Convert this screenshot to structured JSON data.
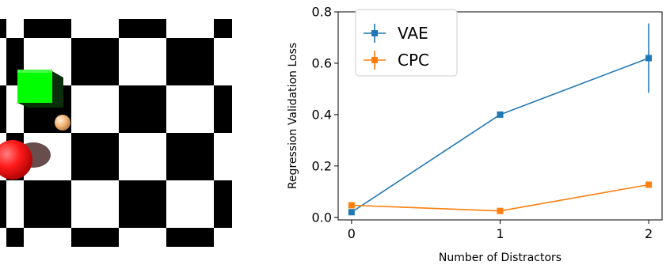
{
  "colors": {
    "vae": "#1f77b4",
    "cpc": "#ff7f0e",
    "board_dark": "#000000",
    "board_light": "#ffffff",
    "cube": "#00ff00",
    "big_ball": "#ff1a1a",
    "small_ball": "#f3b676"
  },
  "scene": {
    "type": "rendered checkerboard image",
    "objects": [
      "green-cube",
      "red-sphere",
      "tan-sphere"
    ]
  },
  "chart_data": {
    "type": "line",
    "x": [
      0,
      1,
      2
    ],
    "xticks": [
      0,
      1,
      2
    ],
    "yticks": [
      0.0,
      0.2,
      0.4,
      0.6,
      0.8
    ],
    "ytick_labels": [
      "0.0",
      "0.2",
      "0.4",
      "0.6",
      "0.8"
    ],
    "xlim": [
      -0.09,
      2.09
    ],
    "ylim": [
      -0.01,
      0.8
    ],
    "xlabel": "Number of Distractors",
    "ylabel": "Regression Validation Loss",
    "legend_position": "top-left",
    "grid": false,
    "series": [
      {
        "name": "VAE",
        "values": [
          0.02,
          0.4,
          0.62
        ],
        "errors": [
          0.0,
          0.0,
          0.135
        ]
      },
      {
        "name": "CPC",
        "values": [
          0.047,
          0.025,
          0.127
        ],
        "errors": [
          0.0,
          0.0,
          0.0
        ]
      }
    ]
  }
}
